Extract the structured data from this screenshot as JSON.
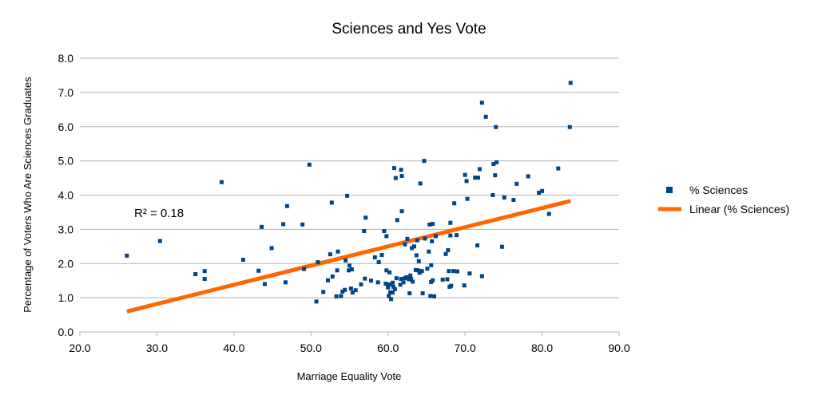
{
  "colors": {
    "points": "#004586",
    "trendline": "#ff6600",
    "grid": "#b3b3b3",
    "axis": "#b3b3b3"
  },
  "chart_data": {
    "type": "scatter",
    "title": "Sciences and Yes Vote",
    "xlabel": "Marriage Equality Vote",
    "ylabel": "Percentage of Voters Who Are Sciences Graduates",
    "xlim": [
      20,
      90
    ],
    "ylim": [
      0,
      8
    ],
    "x_ticks": [
      "20.0",
      "30.0",
      "40.0",
      "50.0",
      "60.0",
      "70.0",
      "80.0",
      "90.0"
    ],
    "y_ticks": [
      "0.0",
      "1.0",
      "2.0",
      "3.0",
      "4.0",
      "5.0",
      "6.0",
      "7.0",
      "8.0"
    ],
    "grid": true,
    "legend_position": "right",
    "r_squared_label": "R² = 0.18",
    "series": [
      {
        "name": "% Sciences",
        "marker": "square",
        "points": [
          [
            26.1,
            2.23
          ],
          [
            30.4,
            2.66
          ],
          [
            35.0,
            1.69
          ],
          [
            36.2,
            1.55
          ],
          [
            36.2,
            1.78
          ],
          [
            38.4,
            4.38
          ],
          [
            41.2,
            2.11
          ],
          [
            43.2,
            1.79
          ],
          [
            43.6,
            3.07
          ],
          [
            44.0,
            1.4
          ],
          [
            44.9,
            2.45
          ],
          [
            46.4,
            3.15
          ],
          [
            46.7,
            1.45
          ],
          [
            46.9,
            3.68
          ],
          [
            48.9,
            3.14
          ],
          [
            49.1,
            1.84
          ],
          [
            49.8,
            4.89
          ],
          [
            50.7,
            0.89
          ],
          [
            50.9,
            2.04
          ],
          [
            51.6,
            1.17
          ],
          [
            52.2,
            1.51
          ],
          [
            52.5,
            2.27
          ],
          [
            52.7,
            3.78
          ],
          [
            52.8,
            1.62
          ],
          [
            53.3,
            1.04
          ],
          [
            53.4,
            1.8
          ],
          [
            53.5,
            2.35
          ],
          [
            53.9,
            1.05
          ],
          [
            54.1,
            1.18
          ],
          [
            54.4,
            1.23
          ],
          [
            54.5,
            2.09
          ],
          [
            54.7,
            3.98
          ],
          [
            54.9,
            1.8
          ],
          [
            55.0,
            1.94
          ],
          [
            55.2,
            1.27
          ],
          [
            55.3,
            1.83
          ],
          [
            55.4,
            1.15
          ],
          [
            55.8,
            1.22
          ],
          [
            56.5,
            1.39
          ],
          [
            56.9,
            2.95
          ],
          [
            57.0,
            1.56
          ],
          [
            57.1,
            3.34
          ],
          [
            57.8,
            1.5
          ],
          [
            58.3,
            2.18
          ],
          [
            58.7,
            1.45
          ],
          [
            58.8,
            2.04
          ],
          [
            59.2,
            2.25
          ],
          [
            59.5,
            2.95
          ],
          [
            59.7,
            1.41
          ],
          [
            59.8,
            2.8
          ],
          [
            59.8,
            1.8
          ],
          [
            60.0,
            1.3
          ],
          [
            60.1,
            1.05
          ],
          [
            60.2,
            1.39
          ],
          [
            60.2,
            1.74
          ],
          [
            60.3,
            1.16
          ],
          [
            60.4,
            0.96
          ],
          [
            60.6,
            1.15
          ],
          [
            60.6,
            1.44
          ],
          [
            60.7,
            1.32
          ],
          [
            60.8,
            4.79
          ],
          [
            60.9,
            1.25
          ],
          [
            61.0,
            4.5
          ],
          [
            61.1,
            1.57
          ],
          [
            61.2,
            3.27
          ],
          [
            61.6,
            1.38
          ],
          [
            61.7,
            1.55
          ],
          [
            61.7,
            4.74
          ],
          [
            61.8,
            3.53
          ],
          [
            61.8,
            4.56
          ],
          [
            62.0,
            1.45
          ],
          [
            62.2,
            2.56
          ],
          [
            62.2,
            1.57
          ],
          [
            62.4,
            1.6
          ],
          [
            62.5,
            2.72
          ],
          [
            62.7,
            1.54
          ],
          [
            62.8,
            1.13
          ],
          [
            62.9,
            1.65
          ],
          [
            63.0,
            1.55
          ],
          [
            63.1,
            2.45
          ],
          [
            63.2,
            1.47
          ],
          [
            63.4,
            2.5
          ],
          [
            63.6,
            1.81
          ],
          [
            63.7,
            2.24
          ],
          [
            63.8,
            2.68
          ],
          [
            63.9,
            1.8
          ],
          [
            64.0,
            2.07
          ],
          [
            64.1,
            1.73
          ],
          [
            64.2,
            4.34
          ],
          [
            64.4,
            1.78
          ],
          [
            64.5,
            1.13
          ],
          [
            64.7,
            5.0
          ],
          [
            64.8,
            2.73
          ],
          [
            65.1,
            1.85
          ],
          [
            65.3,
            2.35
          ],
          [
            65.4,
            3.14
          ],
          [
            65.5,
            1.05
          ],
          [
            65.6,
            1.95
          ],
          [
            65.6,
            1.46
          ],
          [
            65.7,
            2.65
          ],
          [
            65.8,
            3.16
          ],
          [
            65.8,
            1.51
          ],
          [
            66.0,
            1.04
          ],
          [
            66.2,
            2.8
          ],
          [
            67.1,
            1.53
          ],
          [
            67.5,
            2.28
          ],
          [
            67.7,
            1.54
          ],
          [
            67.8,
            2.39
          ],
          [
            67.9,
            1.78
          ],
          [
            68.0,
            1.32
          ],
          [
            68.1,
            2.82
          ],
          [
            68.1,
            3.19
          ],
          [
            68.2,
            1.35
          ],
          [
            68.5,
            1.78
          ],
          [
            68.6,
            3.76
          ],
          [
            68.9,
            2.83
          ],
          [
            69.0,
            1.77
          ],
          [
            69.9,
            1.36
          ],
          [
            70.0,
            4.59
          ],
          [
            70.2,
            4.41
          ],
          [
            70.3,
            3.89
          ],
          [
            70.6,
            1.71
          ],
          [
            71.3,
            4.51
          ],
          [
            71.6,
            2.53
          ],
          [
            71.7,
            4.51
          ],
          [
            71.9,
            4.76
          ],
          [
            72.2,
            1.63
          ],
          [
            72.2,
            6.7
          ],
          [
            72.7,
            6.29
          ],
          [
            73.6,
            4.0
          ],
          [
            73.7,
            4.91
          ],
          [
            73.9,
            4.58
          ],
          [
            74.0,
            5.99
          ],
          [
            74.1,
            4.96
          ],
          [
            74.8,
            2.49
          ],
          [
            75.1,
            3.93
          ],
          [
            76.3,
            3.86
          ],
          [
            76.7,
            4.33
          ],
          [
            78.2,
            4.55
          ],
          [
            79.6,
            4.07
          ],
          [
            80.0,
            4.12
          ],
          [
            80.9,
            3.45
          ],
          [
            82.1,
            4.78
          ],
          [
            83.6,
            5.99
          ],
          [
            83.7,
            7.28
          ]
        ]
      },
      {
        "name": "Linear (% Sciences)",
        "type": "line",
        "points": [
          [
            26.1,
            0.6
          ],
          [
            83.7,
            3.83
          ]
        ]
      }
    ]
  }
}
